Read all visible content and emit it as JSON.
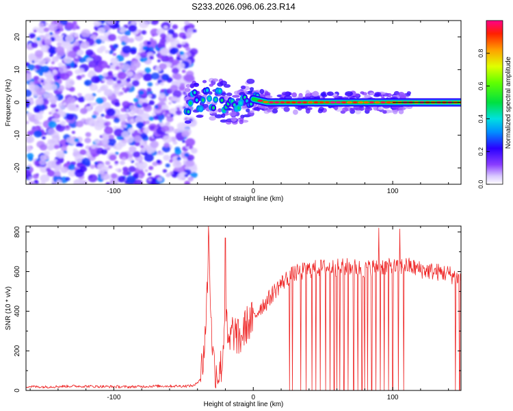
{
  "title": "S233.2026.096.06.23.R14",
  "chart_data": [
    {
      "type": "heatmap",
      "xlabel": "Height of straight line (km)",
      "ylabel": "Frequency (Hz)",
      "xlim": [
        -163,
        149
      ],
      "ylim": [
        -25,
        25
      ],
      "xticks": [
        -100,
        0,
        100
      ],
      "yticks": [
        -20,
        -10,
        0,
        10,
        20
      ],
      "colorbar": {
        "label": "Normalized spectral amplitude",
        "range": [
          0,
          1
        ],
        "ticks": [
          0.0,
          0.2,
          0.4,
          0.6,
          0.8
        ]
      },
      "description_points": {
        "noise_region_x": [
          -163,
          -50
        ],
        "signal_track": [
          {
            "x": -45,
            "y": 0,
            "amp": 0.25
          },
          {
            "x": -35,
            "y": 1,
            "amp": 0.3
          },
          {
            "x": -25,
            "y": 1,
            "amp": 0.4
          },
          {
            "x": -15,
            "y": -1,
            "amp": 0.45
          },
          {
            "x": 0,
            "y": 1,
            "amp": 0.55
          },
          {
            "x": 10,
            "y": 0,
            "amp": 0.7
          },
          {
            "x": 30,
            "y": 0,
            "amp": 0.85
          },
          {
            "x": 60,
            "y": 0,
            "amp": 0.9
          },
          {
            "x": 90,
            "y": 0,
            "amp": 0.9
          },
          {
            "x": 120,
            "y": 0,
            "amp": 0.95
          },
          {
            "x": 149,
            "y": 0,
            "amp": 1.0
          }
        ]
      }
    },
    {
      "type": "line",
      "xlabel": "Height of straight line (km)",
      "ylabel": "SNR (10 * v/v)",
      "xlim": [
        -163,
        149
      ],
      "ylim": [
        0,
        830
      ],
      "xticks": [
        -100,
        0,
        100
      ],
      "yticks": [
        0,
        200,
        400,
        600,
        800
      ],
      "series": [
        {
          "color": "#ee2222",
          "x": [
            -163,
            -150,
            -130,
            -110,
            -90,
            -70,
            -50,
            -42,
            -38,
            -35,
            -33,
            -32,
            -30,
            -28,
            -25,
            -22,
            -20,
            -18,
            -15,
            -12,
            -10,
            -5,
            0,
            5,
            10,
            15,
            20,
            25,
            30,
            35,
            40,
            50,
            60,
            70,
            80,
            90,
            100,
            110,
            120,
            130,
            140,
            149
          ],
          "values": [
            20,
            18,
            22,
            20,
            18,
            22,
            22,
            25,
            60,
            220,
            500,
            820,
            300,
            120,
            80,
            150,
            450,
            200,
            300,
            280,
            250,
            330,
            360,
            420,
            450,
            500,
            540,
            570,
            590,
            600,
            610,
            620,
            620,
            625,
            610,
            630,
            620,
            630,
            610,
            600,
            590,
            560
          ]
        }
      ],
      "dropouts_x": [
        26,
        28,
        34,
        38,
        42,
        45,
        48,
        52,
        55,
        58,
        60,
        62,
        65,
        68,
        72,
        75,
        78,
        80,
        82,
        85,
        88,
        91,
        94,
        97,
        100,
        104,
        108,
        145,
        148
      ],
      "spikes": [
        {
          "x": -32,
          "y": 830
        },
        {
          "x": -20,
          "y": 770
        },
        {
          "x": 90,
          "y": 820
        },
        {
          "x": 105,
          "y": 815
        }
      ]
    }
  ]
}
